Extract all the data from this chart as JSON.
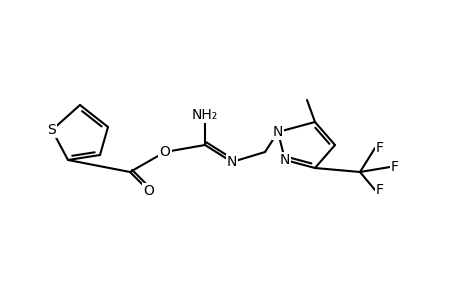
{
  "background_color": "#ffffff",
  "line_color": "#000000",
  "line_width": 1.5,
  "font_size": 10,
  "figsize": [
    4.6,
    3.0
  ],
  "dpi": 100,
  "xlim": [
    0,
    460
  ],
  "ylim": [
    0,
    300
  ]
}
